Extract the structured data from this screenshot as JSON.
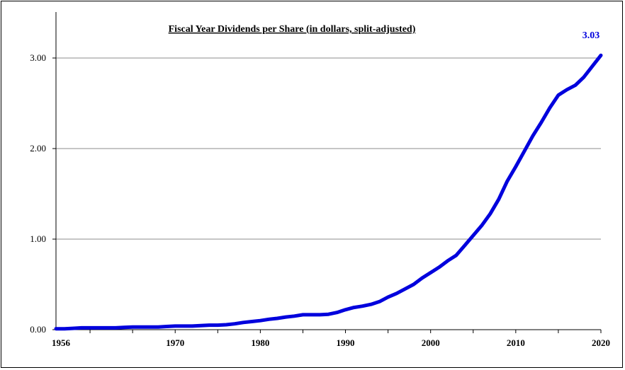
{
  "chart_data": {
    "type": "line",
    "title": "Fiscal Year Dividends per Share (in dollars, split-adjusted)",
    "xlabel": "",
    "ylabel": "",
    "xlim": [
      1956,
      2020
    ],
    "ylim": [
      0,
      3.0
    ],
    "grid": true,
    "x_tick_labels": [
      "1956",
      "1970",
      "1980",
      "1990",
      "2000",
      "2010",
      "2020"
    ],
    "y_tick_labels": [
      "0.00",
      "1.00",
      "2.00",
      "3.00"
    ],
    "line_color": "#0000dd",
    "series": [
      {
        "x": [
          1956,
          1957,
          1958,
          1959,
          1960,
          1961,
          1962,
          1963,
          1964,
          1965,
          1966,
          1967,
          1968,
          1969,
          1970,
          1971,
          1972,
          1973,
          1974,
          1975,
          1976,
          1977,
          1978,
          1979,
          1980,
          1981,
          1982,
          1983,
          1984,
          1985,
          1986,
          1987,
          1988,
          1989,
          1990,
          1991,
          1992,
          1993,
          1994,
          1995,
          1996,
          1997,
          1998,
          1999,
          2000,
          2001,
          2002,
          2003,
          2004,
          2005,
          2006,
          2007,
          2008,
          2009,
          2010,
          2011,
          2012,
          2013,
          2014,
          2015,
          2016,
          2017,
          2018,
          2019,
          2020
        ],
        "values": [
          0.01,
          0.01,
          0.015,
          0.02,
          0.02,
          0.02,
          0.02,
          0.02,
          0.025,
          0.03,
          0.03,
          0.03,
          0.03,
          0.035,
          0.04,
          0.04,
          0.04,
          0.045,
          0.05,
          0.05,
          0.055,
          0.065,
          0.08,
          0.09,
          0.1,
          0.115,
          0.125,
          0.14,
          0.15,
          0.165,
          0.165,
          0.165,
          0.17,
          0.19,
          0.22,
          0.245,
          0.26,
          0.28,
          0.31,
          0.36,
          0.4,
          0.45,
          0.5,
          0.57,
          0.63,
          0.69,
          0.76,
          0.82,
          0.93,
          1.04,
          1.15,
          1.28,
          1.44,
          1.64,
          1.8,
          1.97,
          2.14,
          2.29,
          2.45,
          2.59,
          2.65,
          2.7,
          2.79,
          2.91,
          3.03
        ]
      }
    ],
    "annotations": [
      {
        "text": "3.03",
        "x": 2020,
        "y": 3.03,
        "color": "#0000dd"
      }
    ]
  }
}
